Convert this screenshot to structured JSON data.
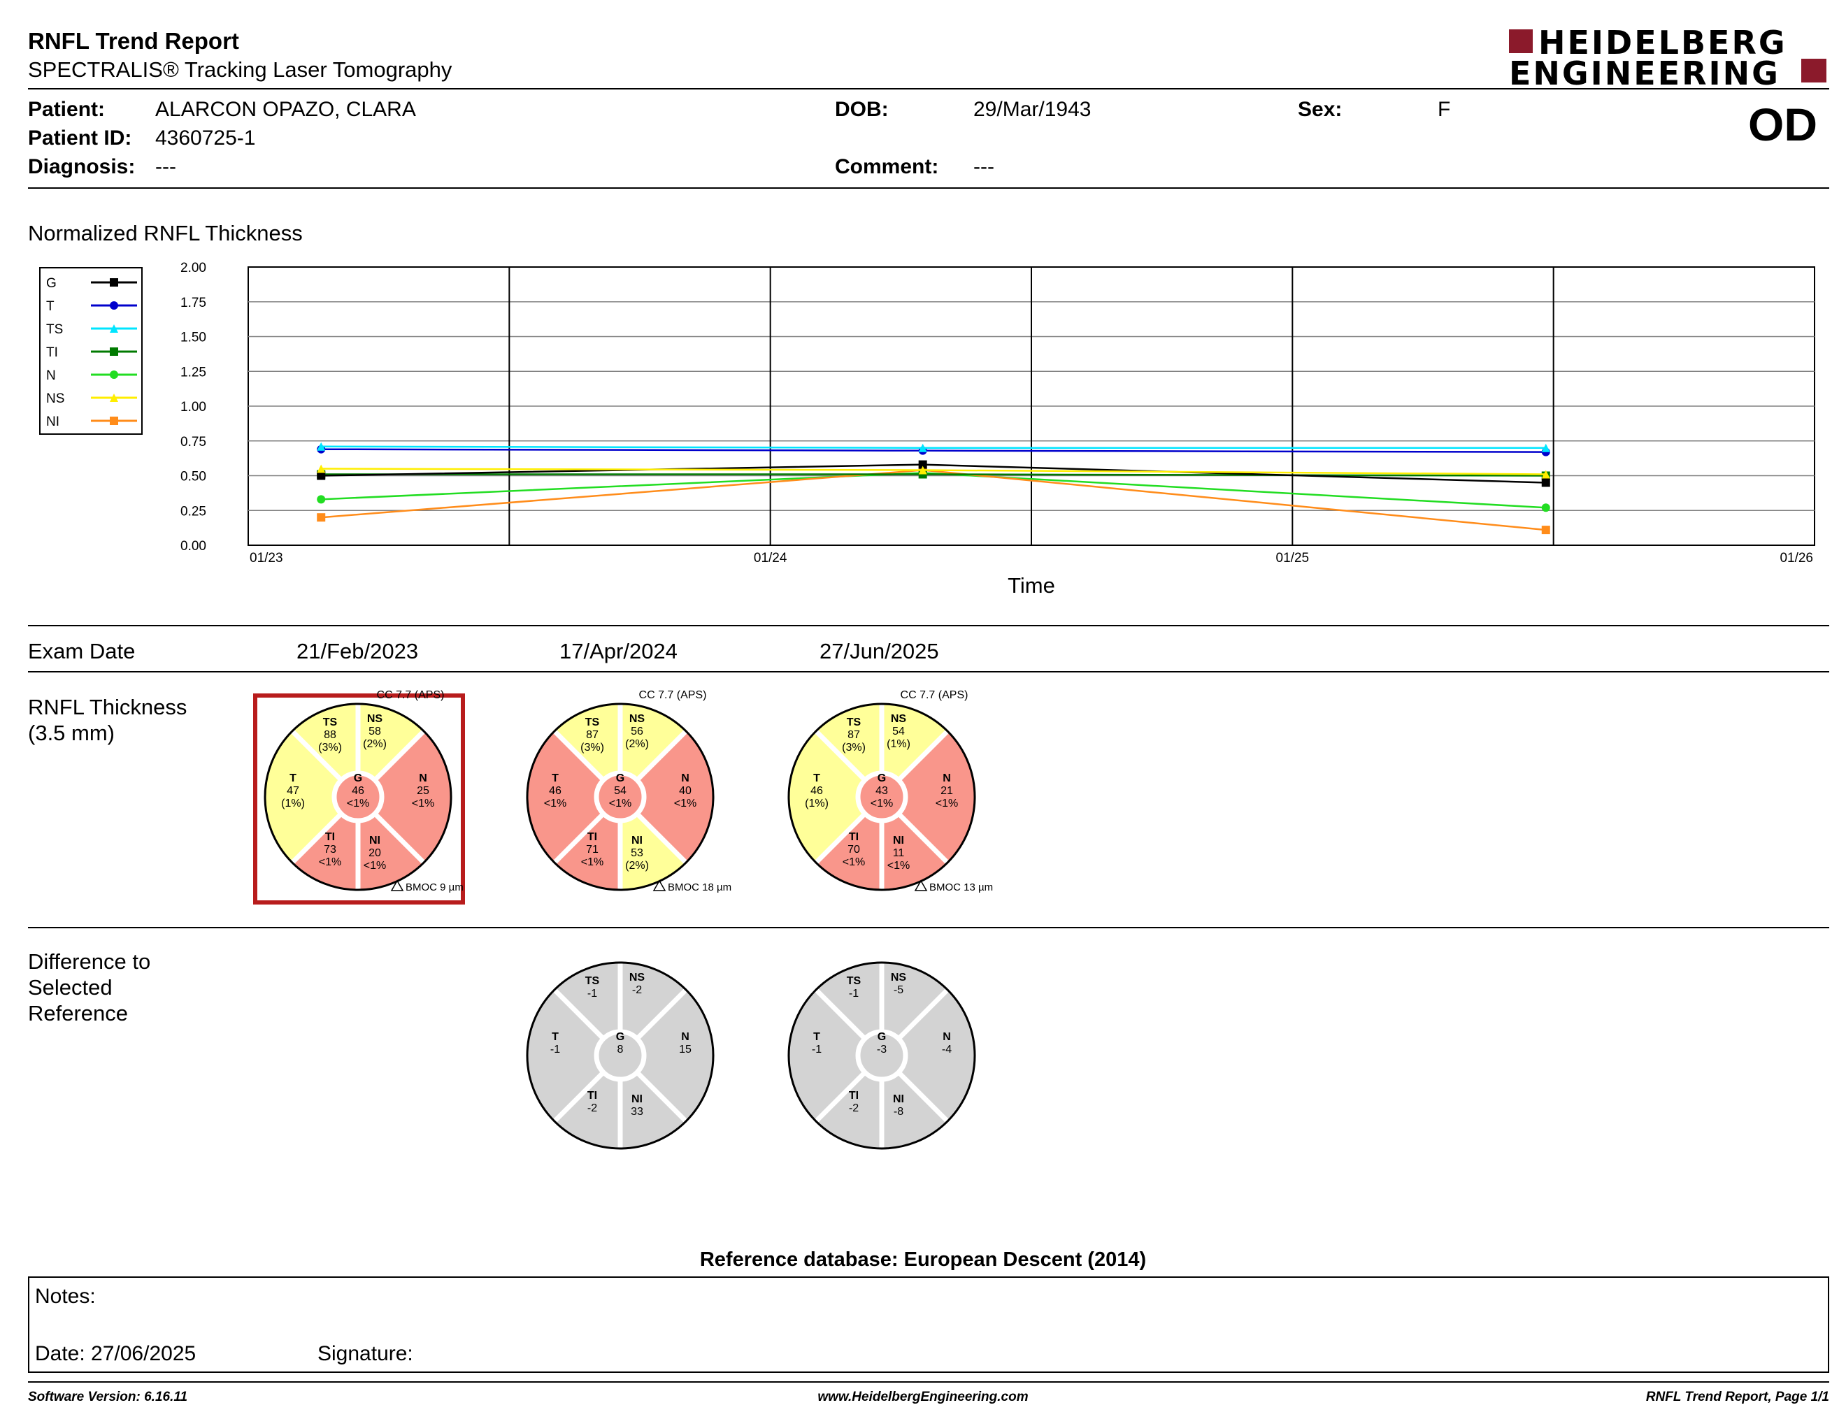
{
  "header": {
    "title": "RNFL Trend Report",
    "subtitle": "SPECTRALIS® Tracking Laser Tomography",
    "logo_line1": "HEIDELBERG",
    "logo_line2": "ENGINEERING",
    "logo_color": "#8b1a2b",
    "eye": "OD"
  },
  "patient": {
    "patient_label": "Patient:",
    "patient_name": "ALARCON OPAZO, CLARA",
    "dob_label": "DOB:",
    "dob": "29/Mar/1943",
    "sex_label": "Sex:",
    "sex": "F",
    "id_label": "Patient ID:",
    "id": "4360725-1",
    "diagnosis_label": "Diagnosis:",
    "diagnosis": "---",
    "comment_label": "Comment:",
    "comment": "---"
  },
  "trend": {
    "section_title": "Normalized RNFL Thickness",
    "legend": [
      {
        "name": "G",
        "color": "#000000",
        "marker": "square"
      },
      {
        "name": "T",
        "color": "#0000cc",
        "marker": "circle"
      },
      {
        "name": "TS",
        "color": "#00e5ff",
        "marker": "triangle"
      },
      {
        "name": "TI",
        "color": "#007a00",
        "marker": "square"
      },
      {
        "name": "N",
        "color": "#22dd22",
        "marker": "circle"
      },
      {
        "name": "NS",
        "color": "#ffee00",
        "marker": "triangle"
      },
      {
        "name": "NI",
        "color": "#ff8c1a",
        "marker": "square"
      }
    ]
  },
  "chart_data": {
    "type": "line",
    "xlabel": "Time",
    "ylabel": "",
    "ylim": [
      0,
      2
    ],
    "yticks": [
      "0.00",
      "0.25",
      "0.50",
      "0.75",
      "1.00",
      "1.25",
      "1.50",
      "1.75",
      "2.00"
    ],
    "xticks": [
      "01/23",
      "01/24",
      "01/25",
      "01/26"
    ],
    "x": [
      "2023-02-21",
      "2024-04-17",
      "2025-06-27"
    ],
    "grid": true,
    "legend_position": "left",
    "series": [
      {
        "name": "G",
        "values": [
          0.5,
          0.58,
          0.45
        ]
      },
      {
        "name": "T",
        "values": [
          0.69,
          0.68,
          0.67
        ]
      },
      {
        "name": "TS",
        "values": [
          0.71,
          0.7,
          0.7
        ]
      },
      {
        "name": "TI",
        "values": [
          0.51,
          0.51,
          0.5
        ]
      },
      {
        "name": "N",
        "values": [
          0.33,
          0.52,
          0.27
        ]
      },
      {
        "name": "NS",
        "values": [
          0.55,
          0.54,
          0.51
        ]
      },
      {
        "name": "NI",
        "values": [
          0.2,
          0.54,
          0.11
        ]
      }
    ]
  },
  "exams": {
    "exam_date_label": "Exam Date",
    "dates": [
      "21/Feb/2023",
      "17/Apr/2024",
      "27/Jun/2025"
    ],
    "rnfl_label_1": "RNFL Thickness",
    "rnfl_label_2": "(3.5 mm)",
    "diff_label_1": "Difference to",
    "diff_label_2": "Selected",
    "diff_label_3": "Reference",
    "colors": {
      "yellow": "#ffff99",
      "red": "#f9968b",
      "gray": "#d3d3d3"
    },
    "rnfl": [
      {
        "cc": "CC 7.7 (APS)",
        "bmoc": "BMOC 9 µm",
        "selected": true,
        "sectors": {
          "TS": {
            "label": "TS",
            "value": "88",
            "pct": "(3%)",
            "color": "yellow"
          },
          "NS": {
            "label": "NS",
            "value": "58",
            "pct": "(2%)",
            "color": "yellow"
          },
          "T": {
            "label": "T",
            "value": "47",
            "pct": "(1%)",
            "color": "yellow"
          },
          "N": {
            "label": "N",
            "value": "25",
            "pct": "<1%",
            "color": "red"
          },
          "TI": {
            "label": "TI",
            "value": "73",
            "pct": "<1%",
            "color": "red"
          },
          "NI": {
            "label": "NI",
            "value": "20",
            "pct": "<1%",
            "color": "red"
          },
          "G": {
            "label": "G",
            "value": "46",
            "pct": "<1%",
            "color": "red"
          }
        }
      },
      {
        "cc": "CC 7.7 (APS)",
        "bmoc": "BMOC 18 µm",
        "selected": false,
        "sectors": {
          "TS": {
            "label": "TS",
            "value": "87",
            "pct": "(3%)",
            "color": "yellow"
          },
          "NS": {
            "label": "NS",
            "value": "56",
            "pct": "(2%)",
            "color": "yellow"
          },
          "T": {
            "label": "T",
            "value": "46",
            "pct": "<1%",
            "color": "red"
          },
          "N": {
            "label": "N",
            "value": "40",
            "pct": "<1%",
            "color": "red"
          },
          "TI": {
            "label": "TI",
            "value": "71",
            "pct": "<1%",
            "color": "red"
          },
          "NI": {
            "label": "NI",
            "value": "53",
            "pct": "(2%)",
            "color": "yellow"
          },
          "G": {
            "label": "G",
            "value": "54",
            "pct": "<1%",
            "color": "red"
          }
        }
      },
      {
        "cc": "CC 7.7 (APS)",
        "bmoc": "BMOC 13 µm",
        "selected": false,
        "sectors": {
          "TS": {
            "label": "TS",
            "value": "87",
            "pct": "(3%)",
            "color": "yellow"
          },
          "NS": {
            "label": "NS",
            "value": "54",
            "pct": "(1%)",
            "color": "yellow"
          },
          "T": {
            "label": "T",
            "value": "46",
            "pct": "(1%)",
            "color": "yellow"
          },
          "N": {
            "label": "N",
            "value": "21",
            "pct": "<1%",
            "color": "red"
          },
          "TI": {
            "label": "TI",
            "value": "70",
            "pct": "<1%",
            "color": "red"
          },
          "NI": {
            "label": "NI",
            "value": "11",
            "pct": "<1%",
            "color": "red"
          },
          "G": {
            "label": "G",
            "value": "43",
            "pct": "<1%",
            "color": "red"
          }
        }
      }
    ],
    "differences": [
      null,
      {
        "TS": "-1",
        "NS": "-2",
        "T": "-1",
        "N": "15",
        "TI": "-2",
        "NI": "33",
        "G": "8"
      },
      {
        "TS": "-1",
        "NS": "-5",
        "T": "-1",
        "N": "-4",
        "TI": "-2",
        "NI": "-8",
        "G": "-3"
      }
    ]
  },
  "reference": {
    "label": "Reference database: European Descent (2014)"
  },
  "notes": {
    "notes_label": "Notes:",
    "date_label": "Date: 27/06/2025",
    "signature_label": "Signature:"
  },
  "footer": {
    "software": "Software Version: 6.16.11",
    "website": "www.HeidelbergEngineering.com",
    "page": "RNFL Trend Report, Page 1/1"
  }
}
